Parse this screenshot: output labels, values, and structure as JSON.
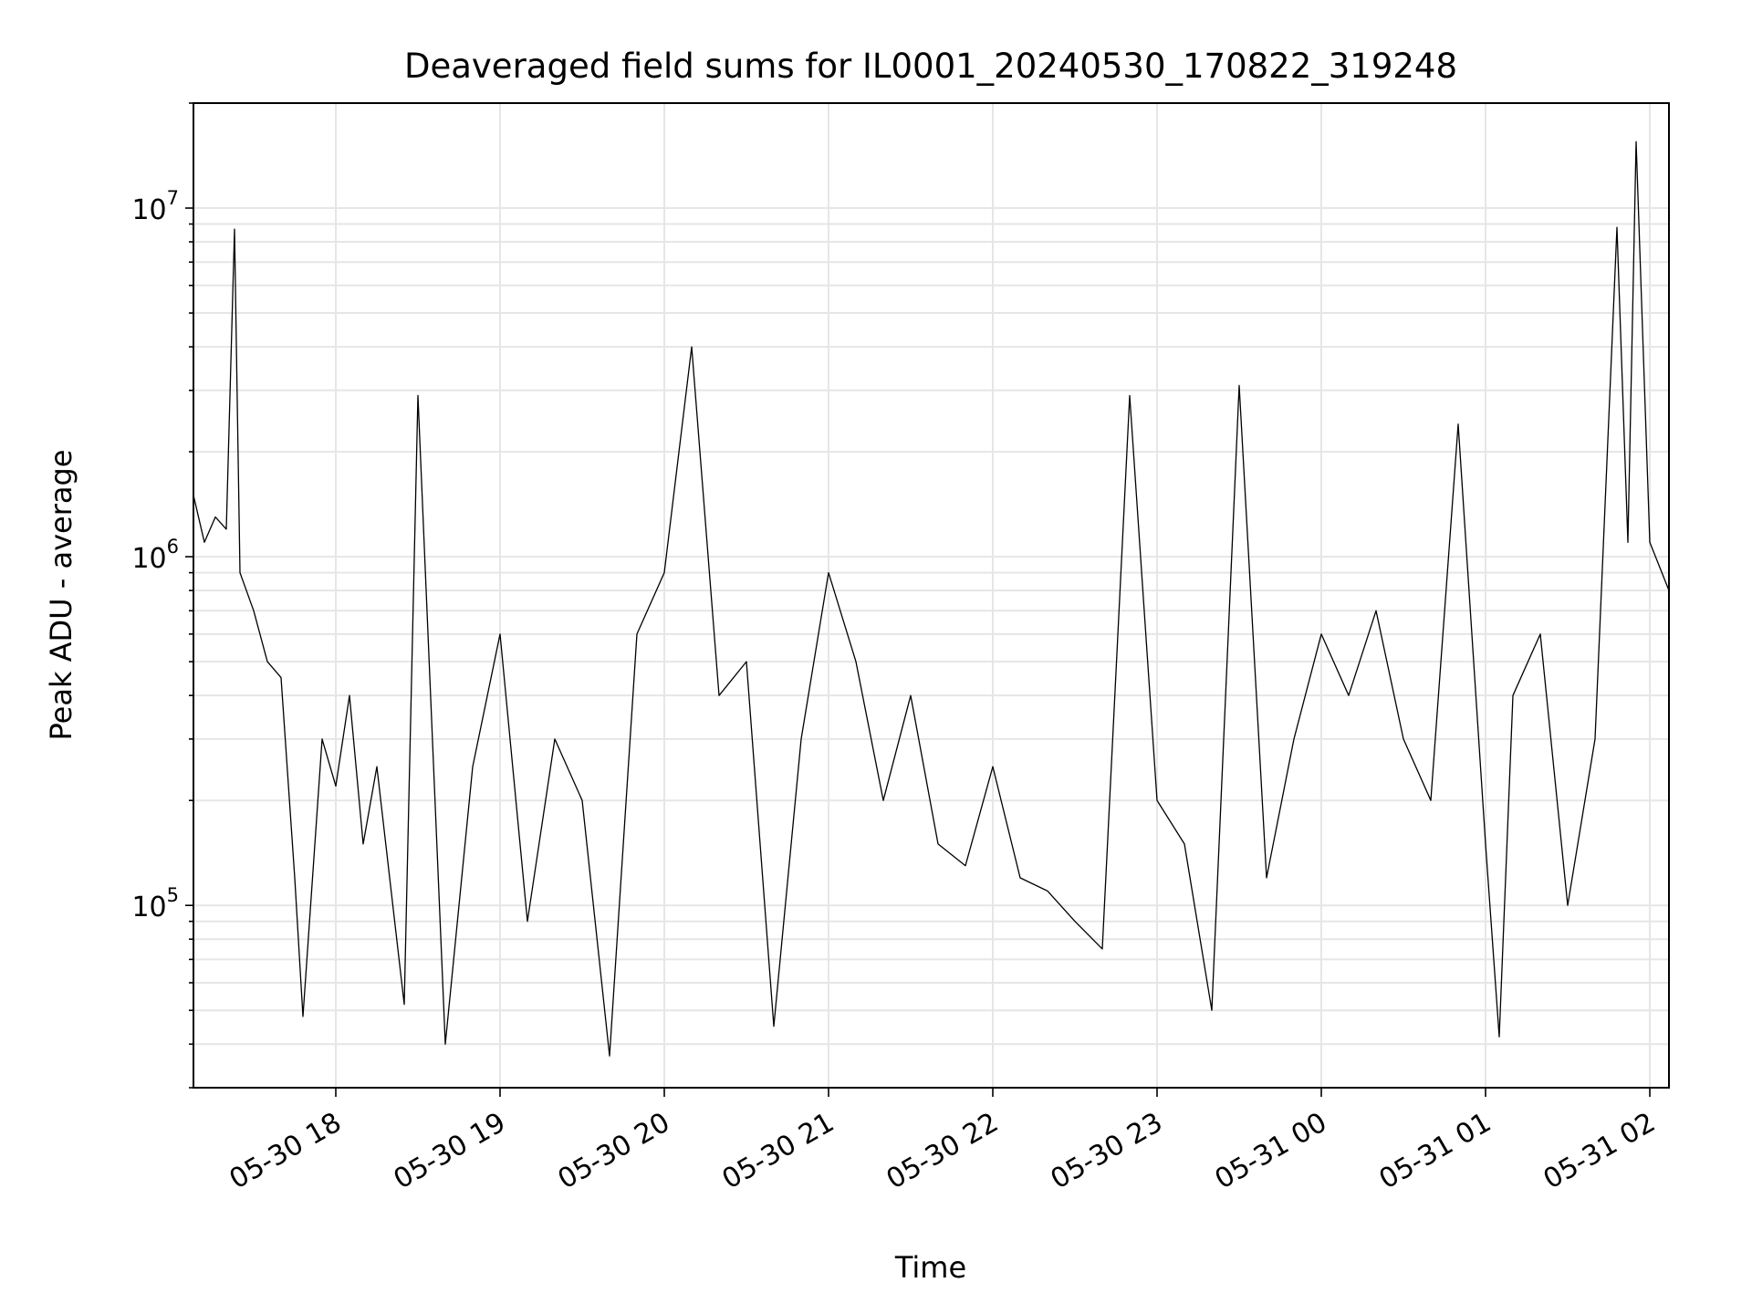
{
  "chart_data": {
    "type": "line",
    "title": "Deaveraged field sums for IL0001_20240530_170822_319248",
    "xlabel": "Time",
    "ylabel": "Peak ADU - average",
    "yscale": "log",
    "ylim": [
      30000,
      20000000
    ],
    "xlim": [
      "05-30 17:08",
      "05-31 02:07"
    ],
    "grid": true,
    "line_color": "#000000",
    "x_ticks": [
      "05-30 18",
      "05-30 19",
      "05-30 20",
      "05-30 21",
      "05-30 22",
      "05-30 23",
      "05-31 00",
      "05-31 01",
      "05-31 02"
    ],
    "y_ticks": [
      {
        "base": "10",
        "exp": "5",
        "value": 100000
      },
      {
        "base": "10",
        "exp": "6",
        "value": 1000000
      },
      {
        "base": "10",
        "exp": "7",
        "value": 10000000
      }
    ],
    "series": [
      {
        "points": [
          [
            "05-30 17:08",
            1500000
          ],
          [
            "05-30 17:12",
            1100000
          ],
          [
            "05-30 17:16",
            1300000
          ],
          [
            "05-30 17:20",
            1200000
          ],
          [
            "05-30 17:23",
            8700000
          ],
          [
            "05-30 17:25",
            900000
          ],
          [
            "05-30 17:30",
            700000
          ],
          [
            "05-30 17:35",
            500000
          ],
          [
            "05-30 17:40",
            450000
          ],
          [
            "05-30 17:45",
            120000
          ],
          [
            "05-30 17:48",
            48000
          ],
          [
            "05-30 17:55",
            300000
          ],
          [
            "05-30 18:00",
            220000
          ],
          [
            "05-30 18:05",
            400000
          ],
          [
            "05-30 18:10",
            150000
          ],
          [
            "05-30 18:15",
            250000
          ],
          [
            "05-30 18:25",
            52000
          ],
          [
            "05-30 18:30",
            2900000
          ],
          [
            "05-30 18:40",
            40000
          ],
          [
            "05-30 18:50",
            250000
          ],
          [
            "05-30 19:00",
            600000
          ],
          [
            "05-30 19:10",
            90000
          ],
          [
            "05-30 19:20",
            300000
          ],
          [
            "05-30 19:30",
            200000
          ],
          [
            "05-30 19:40",
            37000
          ],
          [
            "05-30 19:50",
            600000
          ],
          [
            "05-30 20:00",
            900000
          ],
          [
            "05-30 20:10",
            4000000
          ],
          [
            "05-30 20:20",
            400000
          ],
          [
            "05-30 20:30",
            500000
          ],
          [
            "05-30 20:40",
            45000
          ],
          [
            "05-30 20:50",
            300000
          ],
          [
            "05-30 21:00",
            900000
          ],
          [
            "05-30 21:10",
            500000
          ],
          [
            "05-30 21:20",
            200000
          ],
          [
            "05-30 21:30",
            400000
          ],
          [
            "05-30 21:40",
            150000
          ],
          [
            "05-30 21:50",
            130000
          ],
          [
            "05-30 22:00",
            250000
          ],
          [
            "05-30 22:10",
            120000
          ],
          [
            "05-30 22:20",
            110000
          ],
          [
            "05-30 22:30",
            90000
          ],
          [
            "05-30 22:40",
            75000
          ],
          [
            "05-30 22:50",
            2900000
          ],
          [
            "05-30 23:00",
            200000
          ],
          [
            "05-30 23:10",
            150000
          ],
          [
            "05-30 23:20",
            50000
          ],
          [
            "05-30 23:30",
            3100000
          ],
          [
            "05-30 23:40",
            120000
          ],
          [
            "05-30 23:50",
            300000
          ],
          [
            "05-31 00:00",
            600000
          ],
          [
            "05-31 00:10",
            400000
          ],
          [
            "05-31 00:20",
            700000
          ],
          [
            "05-31 00:30",
            300000
          ],
          [
            "05-31 00:40",
            200000
          ],
          [
            "05-31 00:50",
            2400000
          ],
          [
            "05-31 01:00",
            150000
          ],
          [
            "05-31 01:05",
            42000
          ],
          [
            "05-31 01:10",
            400000
          ],
          [
            "05-31 01:20",
            600000
          ],
          [
            "05-31 01:30",
            100000
          ],
          [
            "05-31 01:40",
            300000
          ],
          [
            "05-31 01:48",
            8800000
          ],
          [
            "05-31 01:52",
            1100000
          ],
          [
            "05-31 01:55",
            15500000
          ],
          [
            "05-31 02:00",
            1100000
          ],
          [
            "05-31 02:07",
            800000
          ]
        ]
      }
    ]
  }
}
